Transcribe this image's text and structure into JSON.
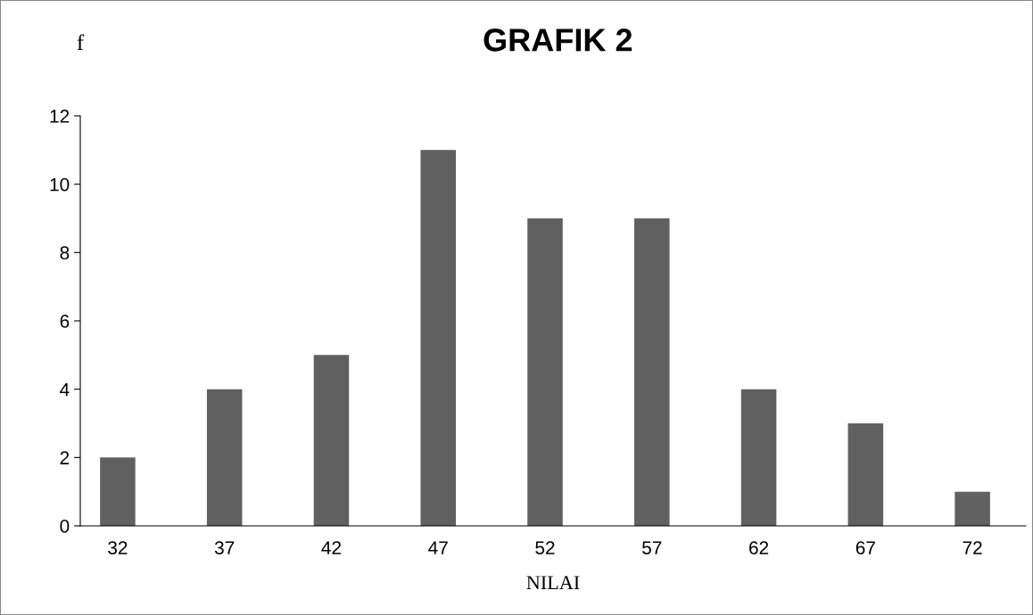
{
  "chart_data": {
    "type": "bar",
    "title": "GRAFIK 2",
    "ylabel": "f",
    "xlabel": "NILAI",
    "categories": [
      "32",
      "37",
      "42",
      "47",
      "52",
      "57",
      "62",
      "67",
      "72"
    ],
    "values": [
      2,
      4,
      5,
      11,
      9,
      9,
      4,
      3,
      1
    ],
    "color": "#606060",
    "ylim": [
      0,
      12
    ],
    "yticks": [
      0,
      2,
      4,
      6,
      8,
      10,
      12
    ],
    "grid": false,
    "legend": false
  }
}
